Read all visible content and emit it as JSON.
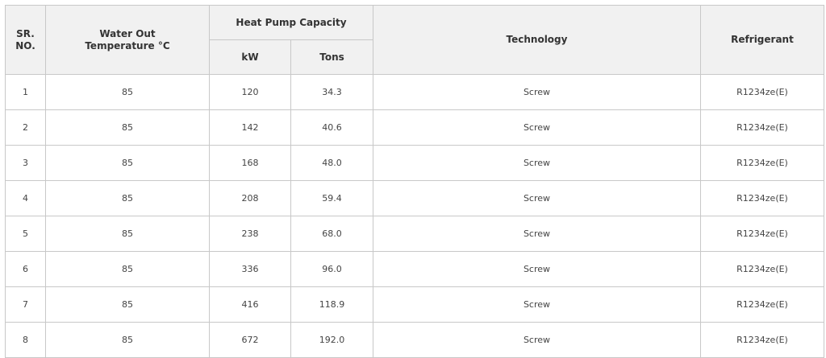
{
  "table": {
    "headers": {
      "sr_line1": "SR.",
      "sr_line2": "NO.",
      "water_out_line1": "Water Out",
      "water_out_line2": "Temperature °C",
      "capacity_group": "Heat Pump Capacity",
      "kw": "kW",
      "tons": "Tons",
      "technology": "Technology",
      "refrigerant": "Refrigerant"
    },
    "rows": [
      {
        "sr": "1",
        "water_out": "85",
        "kw": "120",
        "tons": "34.3",
        "technology": "Screw",
        "refrigerant": "R1234ze(E)"
      },
      {
        "sr": "2",
        "water_out": "85",
        "kw": "142",
        "tons": "40.6",
        "technology": "Screw",
        "refrigerant": "R1234ze(E)"
      },
      {
        "sr": "3",
        "water_out": "85",
        "kw": "168",
        "tons": "48.0",
        "technology": "Screw",
        "refrigerant": "R1234ze(E)"
      },
      {
        "sr": "4",
        "water_out": "85",
        "kw": "208",
        "tons": "59.4",
        "technology": "Screw",
        "refrigerant": "R1234ze(E)"
      },
      {
        "sr": "5",
        "water_out": "85",
        "kw": "238",
        "tons": "68.0",
        "technology": "Screw",
        "refrigerant": "R1234ze(E)"
      },
      {
        "sr": "6",
        "water_out": "85",
        "kw": "336",
        "tons": "96.0",
        "technology": "Screw",
        "refrigerant": "R1234ze(E)"
      },
      {
        "sr": "7",
        "water_out": "85",
        "kw": "416",
        "tons": "118.9",
        "technology": "Screw",
        "refrigerant": "R1234ze(E)"
      },
      {
        "sr": "8",
        "water_out": "85",
        "kw": "672",
        "tons": "192.0",
        "technology": "Screw",
        "refrigerant": "R1234ze(E)"
      }
    ]
  }
}
